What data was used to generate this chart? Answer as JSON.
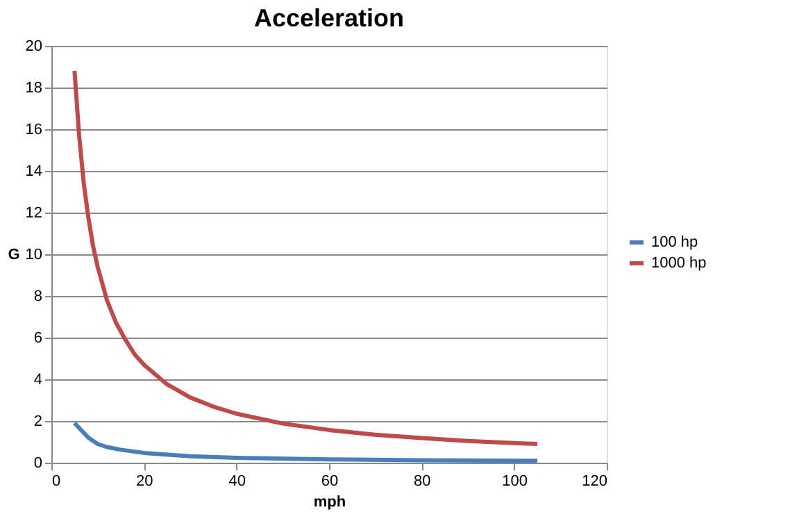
{
  "chart_data": {
    "type": "line",
    "title": "Acceleration",
    "xlabel": "mph",
    "ylabel": "G",
    "xlim": [
      0,
      120
    ],
    "xticks": [
      0,
      20,
      40,
      60,
      80,
      100,
      120
    ],
    "ylim": [
      0,
      20
    ],
    "yticks": [
      0,
      2,
      4,
      6,
      8,
      10,
      12,
      14,
      16,
      18,
      20
    ],
    "grid": "y",
    "legend": "right",
    "marker": "none",
    "line_style": "solid",
    "series": [
      {
        "name": "100 hp",
        "color": "#4a7ebb",
        "x": [
          5,
          8,
          10,
          12,
          15,
          20,
          30,
          40,
          60,
          80,
          105
        ],
        "values": [
          1.9,
          1.2,
          0.9,
          0.75,
          0.62,
          0.47,
          0.31,
          0.23,
          0.16,
          0.12,
          0.09
        ]
      },
      {
        "name": "1000 hp",
        "color": "#be4b48",
        "x": [
          5,
          6,
          7,
          8,
          9,
          10,
          12,
          14,
          16,
          18,
          20,
          25,
          30,
          35,
          40,
          50,
          60,
          70,
          80,
          90,
          100,
          105
        ],
        "values": [
          18.8,
          15.7,
          13.4,
          11.75,
          10.4,
          9.4,
          7.8,
          6.7,
          5.9,
          5.2,
          4.7,
          3.76,
          3.13,
          2.69,
          2.35,
          1.88,
          1.57,
          1.34,
          1.18,
          1.04,
          0.94,
          0.9
        ]
      }
    ]
  }
}
